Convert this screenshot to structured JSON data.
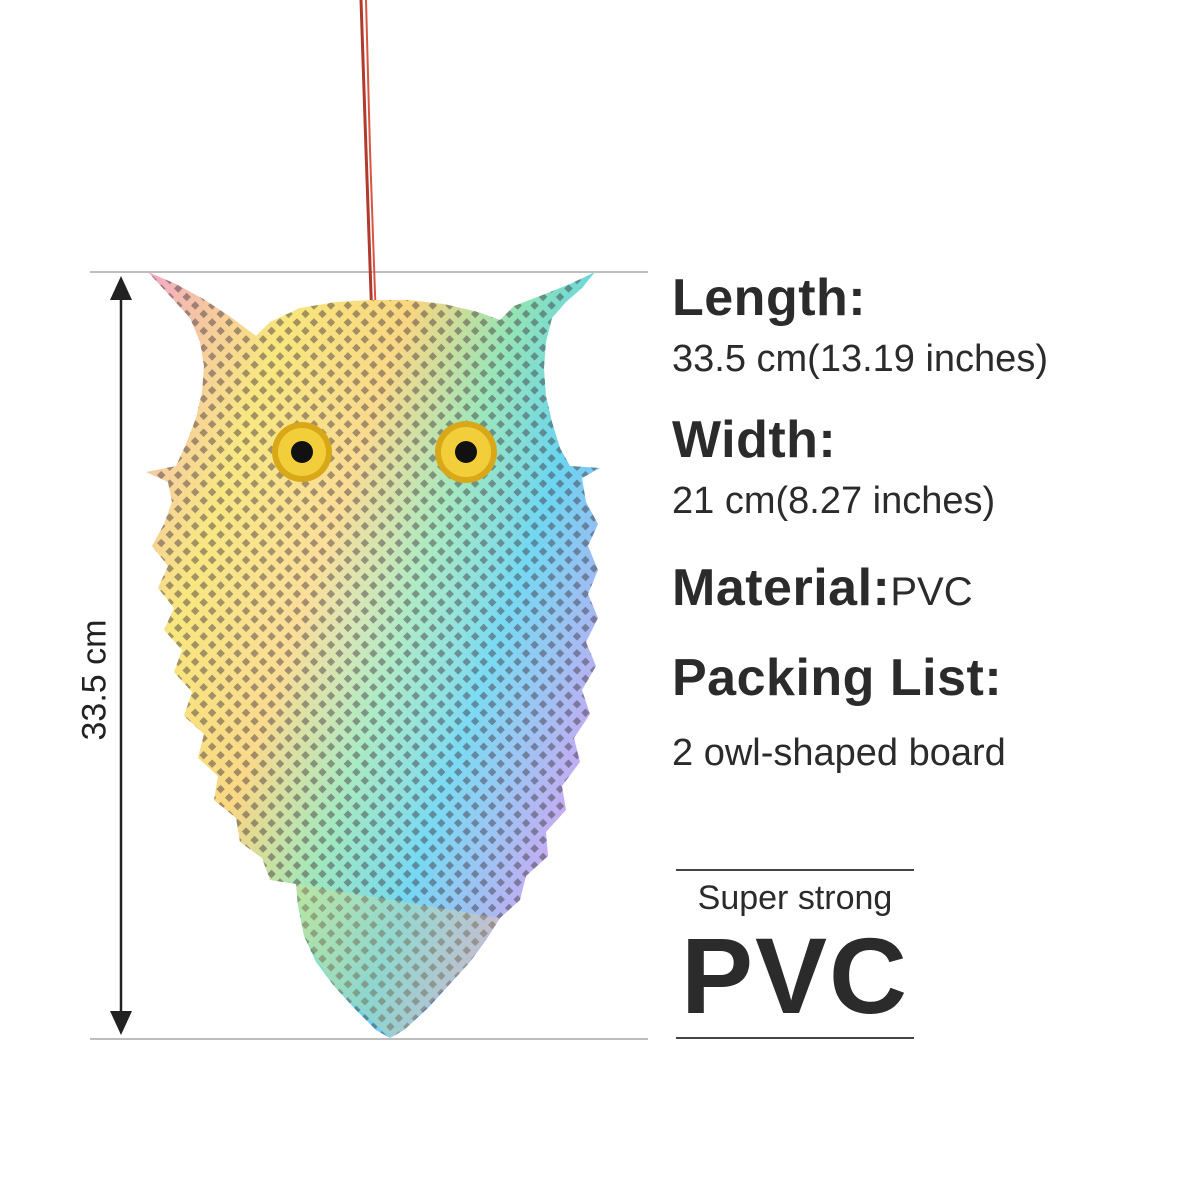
{
  "dimension_label": "33.5 cm",
  "specs": {
    "length_heading": "Length:",
    "length_value": "33.5 cm(13.19 inches)",
    "width_heading": "Width:",
    "width_value": "21 cm(8.27 inches)",
    "material_heading": "Material:",
    "material_value": "PVC",
    "packing_heading": "Packing List:",
    "packing_value": "2 owl-shaped board"
  },
  "badge": {
    "caption": "Super strong",
    "big_text": "PVC"
  },
  "colors": {
    "text": "#2b2b2b",
    "guide_lines": "#bdbdbd",
    "string": "#c0392b",
    "eye_ring": "#e0b31a",
    "pupil": "#111111"
  },
  "icons": [
    "owl-reflector",
    "hanging-string",
    "dimension-arrow"
  ]
}
